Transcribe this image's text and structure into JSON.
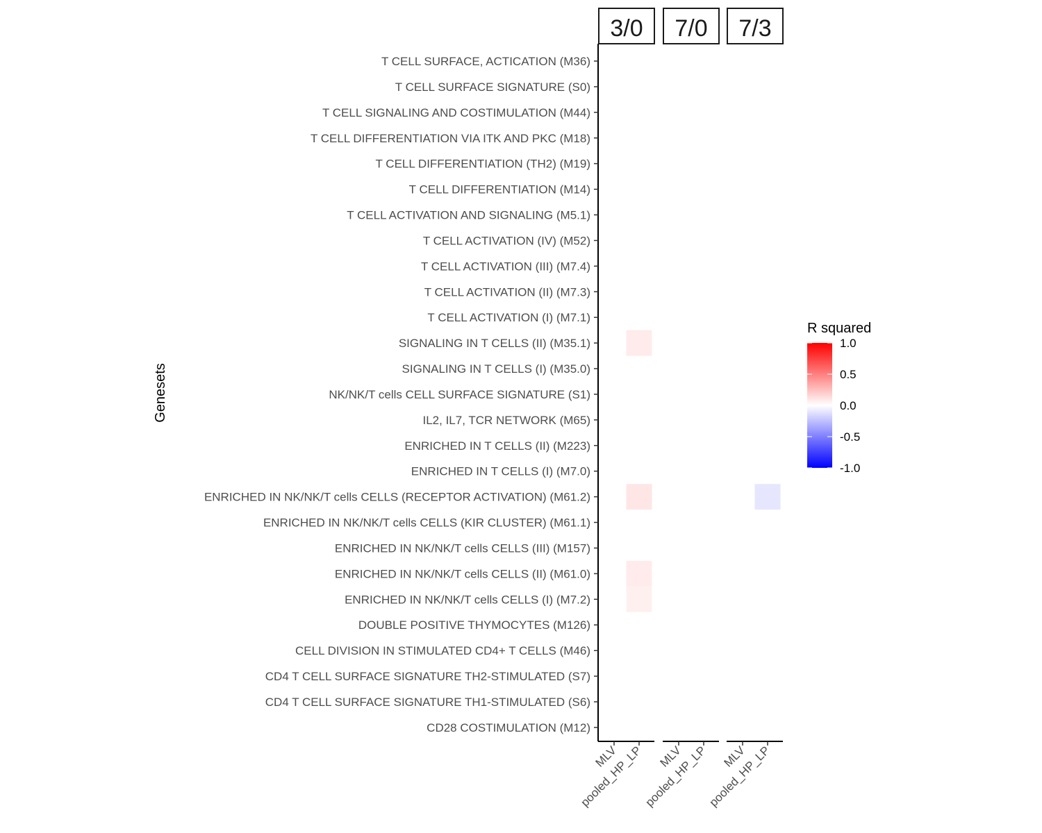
{
  "chart_data": {
    "type": "heatmap",
    "y_axis_title": "Genesets",
    "legend_title": "R squared",
    "legend_ticks": [
      1.0,
      0.5,
      0.0,
      -0.5,
      -1.0
    ],
    "legend_tick_labels": [
      "1.0",
      "0.5",
      "0.0",
      "-0.5",
      "-1.0"
    ],
    "color_scale": {
      "low": "#0000ff",
      "mid": "#ffffff",
      "high": "#ff0000",
      "limits": [
        -1,
        1
      ]
    },
    "facets": [
      "3/0",
      "7/0",
      "7/3"
    ],
    "x_categories": [
      "MLV",
      "pooled_HP_LP"
    ],
    "genesets": [
      "T CELL SURFACE, ACTICATION (M36)",
      "T CELL SURFACE SIGNATURE (S0)",
      "T CELL SIGNALING AND COSTIMULATION (M44)",
      "T CELL DIFFERENTIATION VIA ITK AND PKC (M18)",
      "T CELL DIFFERENTIATION (TH2) (M19)",
      "T CELL DIFFERENTIATION (M14)",
      "T CELL ACTIVATION AND SIGNALING (M5.1)",
      "T CELL ACTIVATION (IV) (M52)",
      "T CELL ACTIVATION (III) (M7.4)",
      "T CELL ACTIVATION (II) (M7.3)",
      "T CELL ACTIVATION (I) (M7.1)",
      "SIGNALING IN T CELLS (II) (M35.1)",
      "SIGNALING IN T CELLS (I) (M35.0)",
      "NK/NK/T cells CELL SURFACE SIGNATURE (S1)",
      "IL2, IL7, TCR NETWORK (M65)",
      "ENRICHED IN T CELLS (II) (M223)",
      "ENRICHED IN T CELLS (I) (M7.0)",
      "ENRICHED IN NK/NK/T cells CELLS (RECEPTOR ACTIVATION) (M61.2)",
      "ENRICHED IN NK/NK/T cells CELLS (KIR CLUSTER) (M61.1)",
      "ENRICHED IN NK/NK/T cells CELLS (III) (M157)",
      "ENRICHED IN NK/NK/T cells CELLS (II) (M61.0)",
      "ENRICHED IN NK/NK/T cells CELLS (I) (M7.2)",
      "DOUBLE POSITIVE THYMOCYTES (M126)",
      "CELL DIVISION IN STIMULATED CD4+ T CELLS (M46)",
      "CD4 T CELL SURFACE SIGNATURE TH2-STIMULATED (S7)",
      "CD4 T CELL SURFACE SIGNATURE TH1-STIMULATED (S6)",
      "CD28 COSTIMULATION (M12)"
    ],
    "cells": [
      {
        "facet": "3/0",
        "x": "pooled_HP_LP",
        "y": "SIGNALING IN T CELLS (II) (M35.1)",
        "value": 0.08
      },
      {
        "facet": "3/0",
        "x": "pooled_HP_LP",
        "y": "ENRICHED IN NK/NK/T cells CELLS (RECEPTOR ACTIVATION) (M61.2)",
        "value": 0.1
      },
      {
        "facet": "3/0",
        "x": "pooled_HP_LP",
        "y": "ENRICHED IN NK/NK/T cells CELLS (II) (M61.0)",
        "value": 0.08
      },
      {
        "facet": "3/0",
        "x": "pooled_HP_LP",
        "y": "ENRICHED IN NK/NK/T cells CELLS (I) (M7.2)",
        "value": 0.06
      },
      {
        "facet": "7/3",
        "x": "pooled_HP_LP",
        "y": "ENRICHED IN NK/NK/T cells CELLS (RECEPTOR ACTIVATION) (M61.2)",
        "value": -0.1
      }
    ]
  }
}
